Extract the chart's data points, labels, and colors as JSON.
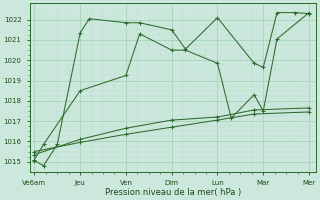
{
  "x_labels": [
    "Ve6am",
    "Jeu",
    "Ven",
    "Dim",
    "Lun",
    "Mar",
    "Mer"
  ],
  "x_major_ticks": [
    0,
    1,
    2,
    3,
    4,
    5,
    6
  ],
  "x_minor_per_major": 4,
  "series": [
    {
      "name": "line1_top",
      "x": [
        0,
        0.2,
        0.5,
        1.0,
        1.2,
        2.0,
        2.3,
        3.0,
        3.3,
        4.0,
        4.8,
        5.0,
        5.3,
        5.7,
        6.0
      ],
      "y": [
        1015.05,
        1014.8,
        1015.85,
        1021.35,
        1022.05,
        1021.85,
        1021.85,
        1021.5,
        1020.55,
        1022.1,
        1019.85,
        1019.65,
        1022.35,
        1022.35,
        1022.3
      ]
    },
    {
      "name": "line2_mid",
      "x": [
        0,
        0.2,
        1.0,
        2.0,
        2.3,
        3.0,
        3.3,
        4.0,
        4.3,
        4.8,
        5.0,
        5.3,
        6.0
      ],
      "y": [
        1015.1,
        1015.85,
        1018.5,
        1019.25,
        1021.3,
        1020.5,
        1020.5,
        1019.85,
        1017.15,
        1018.3,
        1017.5,
        1021.05,
        1022.35
      ]
    },
    {
      "name": "line3_low1",
      "x": [
        0,
        1.0,
        2.0,
        3.0,
        4.0,
        4.8,
        6.0
      ],
      "y": [
        1015.35,
        1016.1,
        1016.65,
        1017.05,
        1017.2,
        1017.55,
        1017.65
      ]
    },
    {
      "name": "line4_low2",
      "x": [
        0,
        1.0,
        2.0,
        3.0,
        4.0,
        4.8,
        6.0
      ],
      "y": [
        1015.5,
        1015.95,
        1016.35,
        1016.7,
        1017.05,
        1017.35,
        1017.45
      ]
    }
  ],
  "line_color": "#2d6a2d",
  "bg_color": "#cce8dc",
  "grid_major_color": "#9ecfb8",
  "grid_minor_color": "#b8dccb",
  "xlabel": "Pression niveau de la mer( hPa )",
  "ylim": [
    1014.5,
    1022.8
  ],
  "yticks": [
    1015,
    1016,
    1017,
    1018,
    1019,
    1020,
    1021,
    1022
  ],
  "fig_bg": "#cce8dc",
  "xlabel_color": "#1a4a1a",
  "tick_label_color": "#1a4a1a"
}
